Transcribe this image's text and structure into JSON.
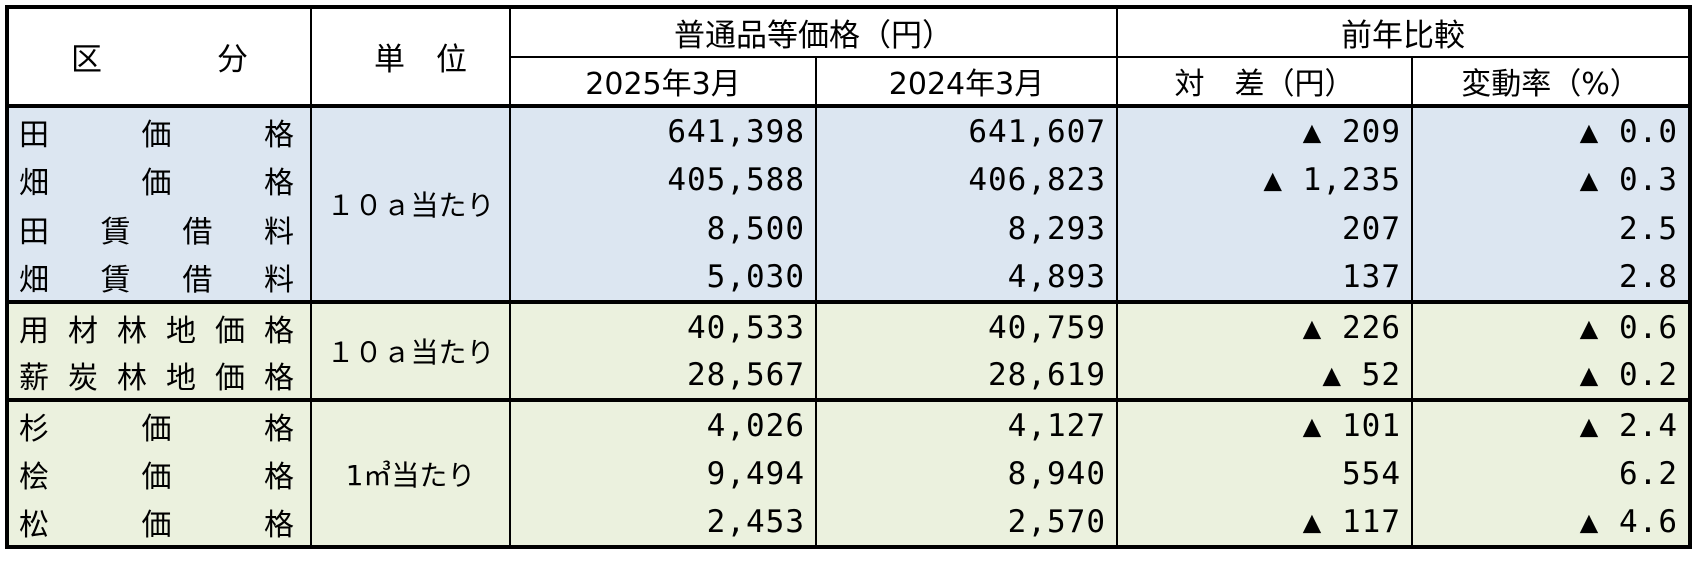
{
  "header": {
    "category": "区　分",
    "unit": "単　位",
    "price_group": "普通品等価格（円）",
    "comparison_group": "前年比較",
    "y2025": "2025年3月",
    "y2024": "2024年3月",
    "diff": "対　差（円）",
    "rate": "変動率（%）"
  },
  "groups": [
    {
      "unit": "１０ａ当たり",
      "rows": [
        {
          "label": "田価格",
          "p2025": "641,398",
          "p2024": "641,607",
          "diff": "▲ 209",
          "rate": "▲ 0.0"
        },
        {
          "label": "畑価格",
          "p2025": "405,588",
          "p2024": "406,823",
          "diff": "▲ 1,235",
          "rate": "▲ 0.3"
        },
        {
          "label": "田賃借料",
          "p2025": "8,500",
          "p2024": "8,293",
          "diff": "207",
          "rate": "2.5"
        },
        {
          "label": "畑賃借料",
          "p2025": "5,030",
          "p2024": "4,893",
          "diff": "137",
          "rate": "2.8"
        }
      ]
    },
    {
      "unit": "１０ａ当たり",
      "rows": [
        {
          "label": "用材林地価格",
          "p2025": "40,533",
          "p2024": "40,759",
          "diff": "▲ 226",
          "rate": "▲ 0.6"
        },
        {
          "label": "薪炭林地価格",
          "p2025": "28,567",
          "p2024": "28,619",
          "diff": "▲ 52",
          "rate": "▲ 0.2"
        }
      ]
    },
    {
      "unit": "1㎥当たり",
      "rows": [
        {
          "label": "杉価格",
          "p2025": "4,026",
          "p2024": "4,127",
          "diff": "▲ 101",
          "rate": "▲ 2.4"
        },
        {
          "label": "桧価格",
          "p2025": "9,494",
          "p2024": "8,940",
          "diff": "554",
          "rate": "6.2"
        },
        {
          "label": "松価格",
          "p2025": "2,453",
          "p2024": "2,570",
          "diff": "▲ 117",
          "rate": "▲ 4.6"
        }
      ]
    }
  ],
  "colors": {
    "paddy_group_bg": "#dce6f1",
    "forest_group_bg": "#ebf1de",
    "border": "#000000"
  }
}
